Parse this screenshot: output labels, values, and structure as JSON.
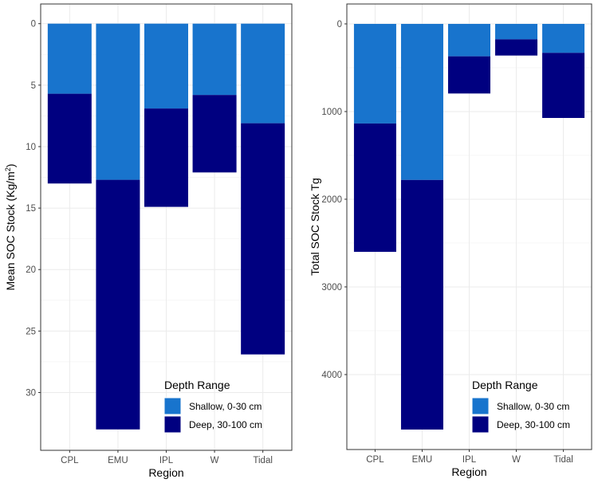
{
  "chart_data": [
    {
      "type": "bar",
      "stacked": true,
      "title": "",
      "xlabel": "Region",
      "ylabel": "Mean SOC Stock (Kg/m²)",
      "ylabel_main": "Mean SOC Stock (Kg/m",
      "ylabel_sup": "2",
      "ylabel_end": ")",
      "y_reversed": true,
      "ylim": [
        -1.6,
        34.7
      ],
      "yticks": [
        0,
        5,
        10,
        15,
        20,
        25,
        30
      ],
      "grid": true,
      "categories": [
        "CPL",
        "EMU",
        "IPL",
        "W",
        "Tidal"
      ],
      "series": [
        {
          "name": "Shallow, 0-30 cm",
          "color": "#1874CD",
          "values": [
            5.7,
            12.7,
            6.9,
            5.8,
            8.1
          ]
        },
        {
          "name": "Deep, 30-100 cm",
          "color": "#000080",
          "values": [
            7.3,
            20.3,
            8.0,
            6.3,
            18.8
          ]
        }
      ],
      "legend": {
        "title": "Depth Range",
        "placement": "bottom-right"
      }
    },
    {
      "type": "bar",
      "stacked": true,
      "title": "",
      "xlabel": "Region",
      "ylabel": "Total SOC Stock Tg",
      "y_reversed": true,
      "ylim": [
        -227,
        4855
      ],
      "yticks": [
        0,
        1000,
        2000,
        3000,
        4000
      ],
      "grid": true,
      "categories": [
        "CPL",
        "EMU",
        "IPL",
        "W",
        "Tidal"
      ],
      "series": [
        {
          "name": "Shallow, 0-30 cm",
          "color": "#1874CD",
          "values": [
            1136,
            1780,
            370,
            176,
            330
          ]
        },
        {
          "name": "Deep, 30-100 cm",
          "color": "#000080",
          "values": [
            1464,
            2847,
            424,
            185,
            743
          ]
        }
      ],
      "legend": {
        "title": "Depth Range",
        "placement": "bottom-right"
      }
    }
  ]
}
